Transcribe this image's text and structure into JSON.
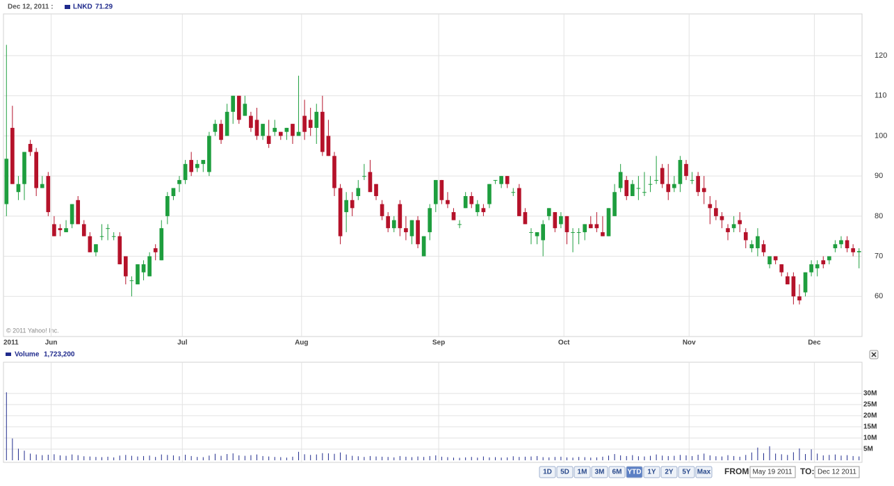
{
  "chart_data": {
    "type": "candlestick",
    "date_label": "Dec 12, 2011 :",
    "copyright": "© 2011 Yahoo! Inc.",
    "categories": [
      "2011",
      null,
      null,
      null,
      null,
      null,
      null,
      null,
      "Jun",
      null,
      null,
      null,
      null,
      null,
      null,
      null,
      null,
      null,
      null,
      null,
      null,
      null,
      null,
      null,
      null,
      null,
      null,
      null,
      null,
      null,
      "Jul",
      null,
      null,
      null,
      null,
      null,
      null,
      null,
      null,
      null,
      null,
      null,
      null,
      null,
      null,
      null,
      null,
      null,
      null,
      null,
      "Aug",
      null,
      null,
      null,
      null,
      null,
      null,
      null,
      null,
      null,
      null,
      null,
      null,
      null,
      null,
      null,
      null,
      null,
      null,
      null,
      null,
      null,
      null,
      "Sep",
      null,
      null,
      null,
      null,
      null,
      null,
      null,
      null,
      null,
      null,
      null,
      null,
      null,
      null,
      null,
      null,
      null,
      null,
      null,
      null,
      "Oct",
      null,
      null,
      null,
      null,
      null,
      null,
      null,
      null,
      null,
      null,
      null,
      null,
      null,
      null,
      null,
      null,
      null,
      null,
      null,
      null,
      "Nov",
      null,
      null,
      null,
      null,
      null,
      null,
      null,
      null,
      null,
      null,
      null,
      null,
      null,
      null,
      null,
      null,
      null,
      null,
      null,
      null,
      "Dec",
      null,
      null,
      null,
      null,
      null,
      null,
      null
    ],
    "series": [
      {
        "name": "LNKD",
        "up_color": "#1e9e3e",
        "down_color": "#b5122a",
        "open": [
          83,
          102,
          86,
          88,
          98,
          96,
          87,
          90,
          78,
          77,
          76,
          78,
          84,
          78,
          75,
          71,
          75,
          77,
          75,
          75,
          70,
          64,
          63,
          66,
          65,
          72,
          69,
          80,
          85,
          88,
          89,
          94,
          92,
          93,
          91,
          101,
          103,
          100,
          106,
          110,
          105,
          105,
          104,
          100,
          100,
          101,
          101,
          101,
          103,
          100,
          105,
          104,
          102,
          106,
          100,
          95,
          87,
          81,
          84,
          85,
          90,
          91,
          88,
          83,
          80,
          77,
          83,
          77,
          75,
          79,
          70,
          76,
          83,
          89,
          84,
          81,
          78,
          82,
          85,
          81,
          82,
          83,
          89,
          88,
          90,
          86,
          87,
          81,
          76,
          75,
          74,
          80,
          81,
          78,
          80,
          76,
          76,
          76,
          78,
          78,
          76,
          75,
          80,
          87,
          89,
          85,
          87,
          86,
          88,
          89,
          92,
          88,
          87,
          88,
          93,
          89,
          90,
          87,
          83,
          82,
          80,
          77,
          77,
          79,
          76,
          72,
          72,
          73,
          68,
          70,
          68,
          65,
          65,
          60,
          61,
          66,
          67,
          69,
          69,
          72,
          73,
          74,
          72,
          71
        ],
        "high": [
          122.7,
          107.5,
          90,
          96,
          99,
          97,
          90,
          91,
          80,
          78,
          79,
          83,
          85,
          79,
          76,
          73,
          78,
          78,
          76,
          76,
          70,
          65,
          68,
          69,
          71,
          73,
          79,
          86,
          87,
          90,
          94,
          96,
          94,
          94,
          101,
          104,
          104,
          108,
          110,
          110,
          110,
          106,
          107,
          103,
          104,
          104,
          101,
          102,
          103,
          115,
          109,
          107,
          108,
          110,
          104,
          96,
          88,
          86,
          86,
          89,
          93,
          94,
          88,
          84,
          81,
          80,
          84,
          80,
          79,
          80,
          75,
          83,
          89,
          89,
          86,
          82,
          79,
          86,
          86,
          84,
          83,
          88,
          89,
          90,
          90,
          87,
          88,
          82,
          77,
          76,
          79,
          82,
          81,
          81,
          80,
          77,
          77,
          78,
          80,
          81,
          80,
          82,
          88,
          93,
          90,
          89,
          90,
          91,
          90,
          95,
          93,
          93,
          90,
          95,
          94,
          91,
          91,
          90,
          85,
          84,
          81,
          78,
          80,
          81,
          77,
          74,
          77,
          74,
          70,
          70,
          68,
          66,
          66,
          63,
          66,
          69,
          69,
          70,
          70,
          74,
          75,
          75,
          73,
          72
        ],
        "low": [
          80,
          88,
          84,
          84,
          95,
          85,
          87,
          80,
          75,
          75,
          76,
          77,
          78,
          75,
          71,
          70,
          74,
          74,
          74,
          68,
          63,
          60,
          63,
          64,
          65,
          69,
          69,
          78,
          84,
          86,
          88,
          90,
          91,
          91,
          90,
          100,
          98,
          100,
          103,
          103,
          105,
          101,
          99,
          99,
          97,
          100,
          99,
          99,
          98,
          100,
          99,
          100,
          98,
          95,
          95,
          85,
          73,
          76,
          80,
          84,
          89,
          86,
          84,
          79,
          76,
          76,
          75,
          74,
          73,
          72,
          70,
          74,
          81,
          83,
          82,
          79,
          77,
          82,
          82,
          80,
          80,
          82,
          88,
          87,
          87,
          85,
          80,
          78,
          73,
          73,
          70,
          79,
          76,
          77,
          73,
          71,
          73,
          74,
          77,
          76,
          75,
          75,
          80,
          86,
          84,
          85,
          84,
          85,
          86,
          88,
          87,
          84,
          86,
          86,
          89,
          88,
          85,
          83,
          78,
          79,
          77,
          74,
          76,
          76,
          72,
          71,
          70,
          70,
          67,
          68,
          65,
          63,
          58,
          58,
          60,
          65,
          65,
          67,
          68,
          71,
          72,
          71,
          70,
          67
        ],
        "close": [
          94.3,
          88,
          88,
          96,
          96,
          87,
          88,
          81,
          75,
          76.5,
          77,
          83,
          78,
          75,
          71,
          73,
          75,
          77,
          75,
          68,
          65,
          64,
          68,
          68,
          70,
          71,
          77,
          85,
          87,
          89,
          93,
          91,
          93,
          94,
          100,
          103,
          99,
          106,
          110,
          104,
          108,
          102,
          100,
          103,
          98,
          102,
          100,
          102,
          100,
          101,
          101,
          102,
          106,
          96,
          95,
          87,
          75,
          84,
          82,
          87,
          90,
          86,
          85,
          80,
          77,
          79,
          77,
          76,
          79,
          73,
          75,
          82,
          89,
          84,
          83,
          79,
          78,
          85,
          83,
          83,
          81,
          88,
          89,
          90,
          88,
          86,
          80,
          78,
          76,
          76,
          78,
          82,
          77,
          80,
          76,
          76,
          76,
          78,
          77,
          77,
          75,
          82,
          86,
          91,
          85,
          88,
          87,
          86,
          88,
          89,
          88,
          86,
          88,
          94,
          90,
          89,
          86,
          86,
          82,
          80,
          79,
          76,
          78,
          78,
          74,
          73,
          75,
          71,
          70,
          69,
          66,
          63,
          60,
          59,
          66,
          68,
          68,
          68,
          70,
          73,
          74,
          72,
          71,
          71.29
        ]
      }
    ],
    "ylim": [
      50,
      130.4
    ],
    "yticks": [
      60,
      70,
      80,
      90,
      100,
      110,
      120
    ],
    "grid": true,
    "volume": {
      "name": "Volume",
      "color": "#1f2a8c",
      "last_label": "1,723,200",
      "values": [
        30500000,
        9800000,
        5200000,
        4300000,
        3000000,
        2600000,
        2300000,
        2500000,
        2700000,
        2200000,
        2000000,
        2600000,
        2300000,
        1800000,
        1700000,
        1500000,
        1400000,
        1600000,
        1300000,
        2100000,
        2400000,
        2000000,
        1700000,
        1900000,
        2100000,
        1500000,
        2600000,
        2400000,
        2200000,
        1800000,
        2500000,
        1900000,
        1500000,
        1400000,
        2100000,
        2900000,
        2000000,
        2800000,
        3100000,
        2200000,
        2000000,
        2300000,
        2600000,
        1900000,
        1700000,
        1500000,
        1400000,
        1200000,
        1600000,
        3800000,
        2700000,
        2400000,
        2600000,
        3200000,
        3100000,
        2900000,
        3500000,
        2600000,
        2000000,
        1800000,
        1500000,
        1900000,
        1700000,
        1600000,
        1500000,
        1300000,
        1900000,
        1600000,
        1400000,
        1700000,
        1500000,
        1900000,
        2200000,
        1600000,
        1400000,
        1200000,
        1100000,
        1300000,
        1500000,
        1200000,
        1700000,
        1300000,
        1400000,
        1200000,
        1300000,
        1800000,
        1500000,
        1600000,
        1700000,
        1900000,
        1400000,
        1300000,
        1500000,
        1600000,
        1300000,
        1200000,
        1500000,
        1400000,
        1200000,
        1300000,
        1600000,
        2100000,
        2800000,
        2200000,
        1900000,
        2300000,
        1800000,
        1700000,
        2000000,
        2600000,
        2100000,
        1900000,
        2000000,
        2400000,
        2200000,
        1900000,
        2500000,
        3000000,
        2200000,
        1800000,
        1700000,
        2300000,
        1900000,
        1600000,
        2400000,
        3500000,
        5700000,
        3200000,
        6300000,
        3000000,
        2700000,
        2400000,
        3600000,
        5300000,
        2800000,
        4900000,
        3000000,
        2200000,
        2400000,
        2600000,
        2100000,
        2300000,
        1900000,
        1723200
      ],
      "ylim": [
        0,
        44000000
      ],
      "yticks": [
        {
          "value": 5000000,
          "label": "5M"
        },
        {
          "value": 10000000,
          "label": "10M"
        },
        {
          "value": 15000000,
          "label": "15M"
        },
        {
          "value": 20000000,
          "label": "20M"
        },
        {
          "value": 25000000,
          "label": "25M"
        },
        {
          "value": 30000000,
          "label": "30M"
        }
      ]
    },
    "range_buttons": [
      "1D",
      "5D",
      "1M",
      "3M",
      "6M",
      "YTD",
      "1Y",
      "2Y",
      "5Y",
      "Max"
    ],
    "selected_range": "YTD",
    "from_label": "FROM:",
    "from": "May 19 2011",
    "to_label": "TO:",
    "to": "Dec 12 2011"
  }
}
